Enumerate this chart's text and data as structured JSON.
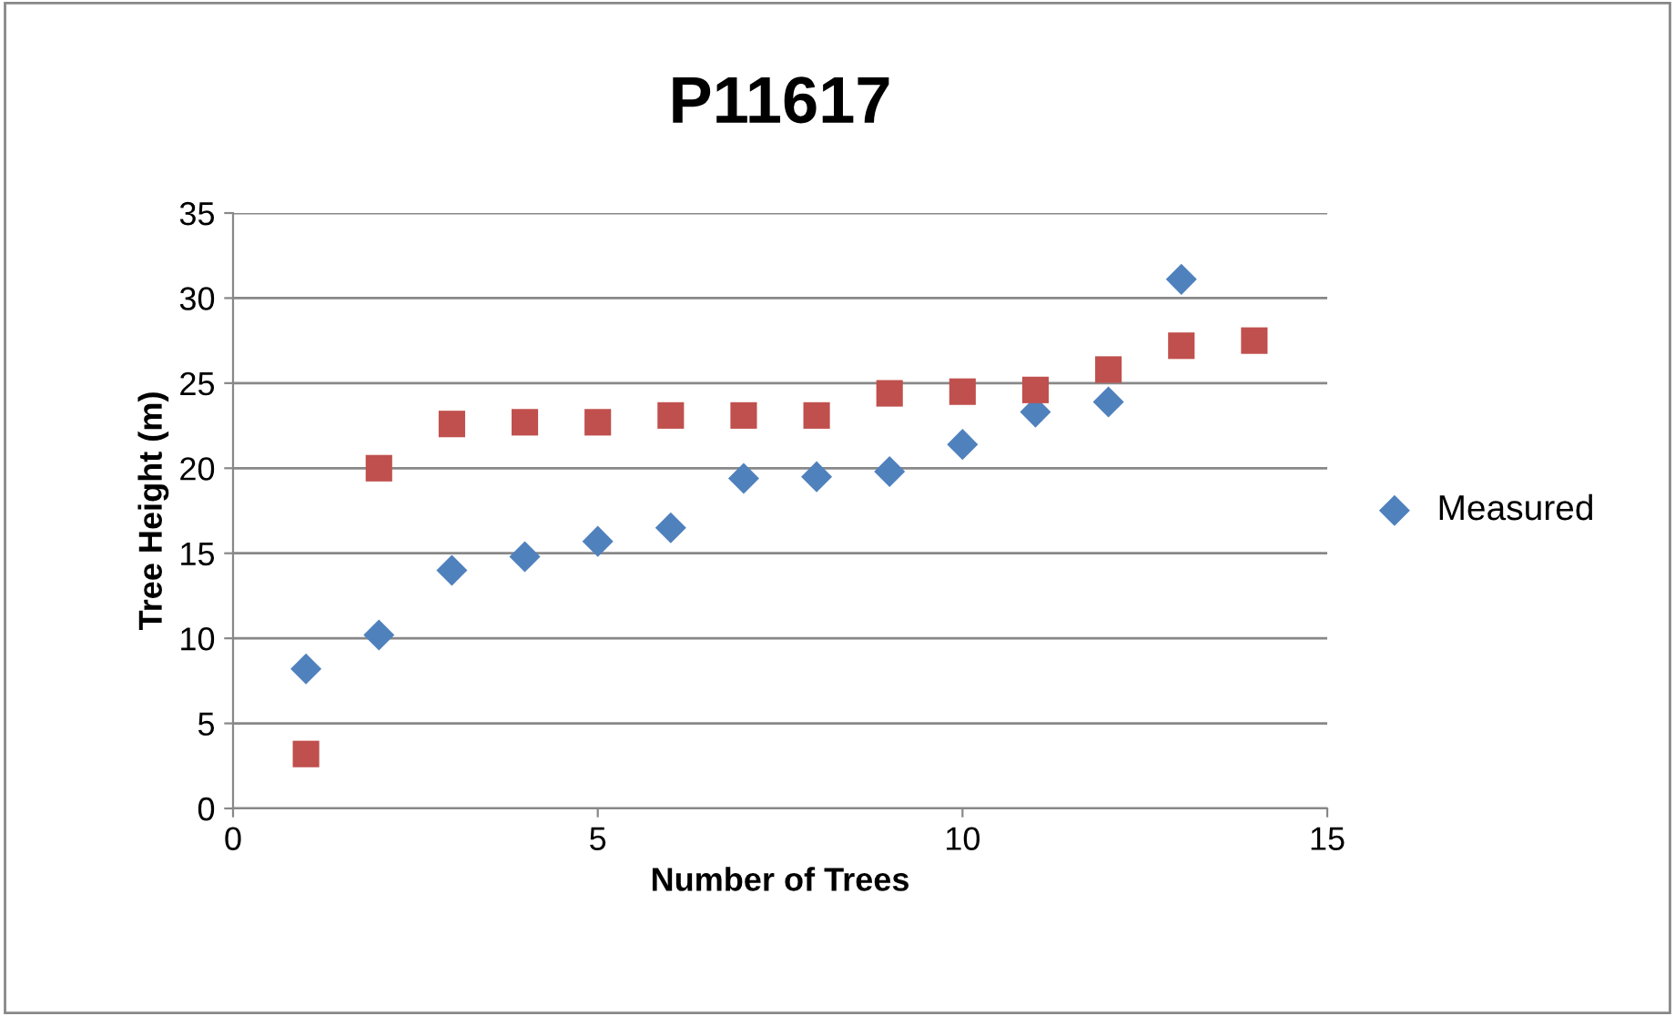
{
  "chart_data": {
    "type": "scatter",
    "title": "P11617",
    "xlabel": "Number of Trees",
    "ylabel": "Tree Height (m)",
    "xlim": [
      0,
      15
    ],
    "xticks": [
      0,
      5,
      10,
      15
    ],
    "ylim": [
      0,
      35
    ],
    "yticks": [
      0,
      5,
      10,
      15,
      20,
      25,
      30,
      35
    ],
    "grid": "y",
    "legend": "right",
    "series": [
      {
        "name": "Measured",
        "color": "#4f81bd",
        "marker": "diamond",
        "x": [
          1,
          2,
          3,
          4,
          5,
          6,
          7,
          8,
          9,
          10,
          11,
          12,
          13
        ],
        "values": [
          8.2,
          10.2,
          14.0,
          14.8,
          15.7,
          16.5,
          19.4,
          19.5,
          19.8,
          21.4,
          23.3,
          23.9,
          31.1
        ]
      },
      {
        "color": "#c0504d",
        "marker": "square",
        "x": [
          1,
          2,
          3,
          4,
          5,
          6,
          7,
          8,
          9,
          10,
          11,
          12,
          13,
          14
        ],
        "values": [
          3.2,
          20.0,
          22.6,
          22.7,
          22.7,
          23.1,
          23.1,
          23.1,
          24.4,
          24.5,
          24.6,
          25.8,
          27.2,
          27.5
        ]
      }
    ]
  }
}
